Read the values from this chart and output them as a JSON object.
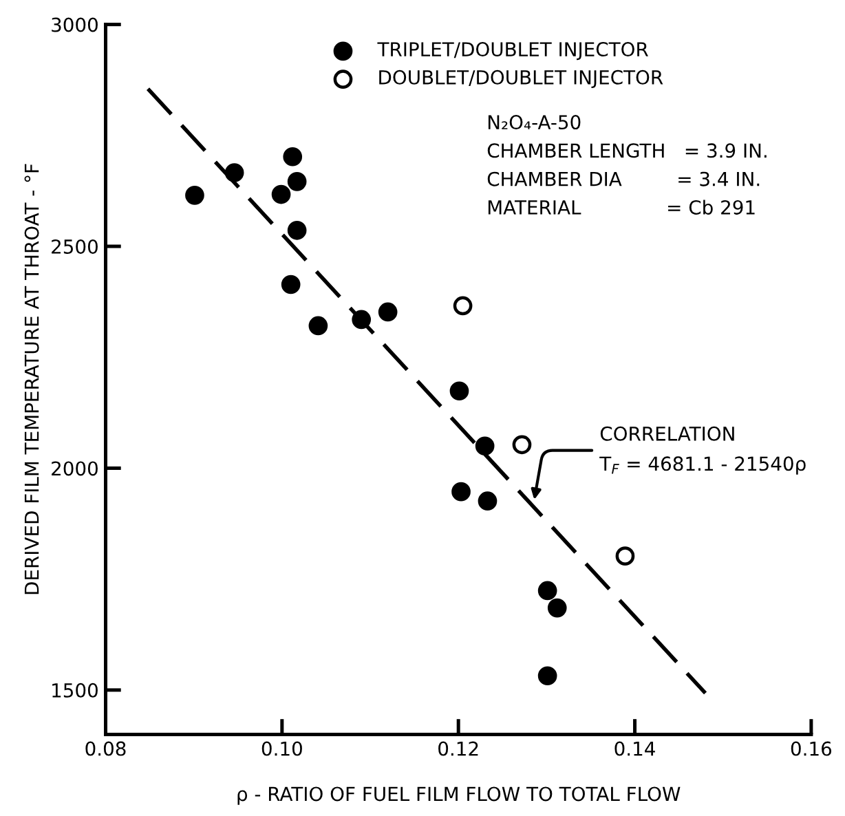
{
  "chart_data": {
    "type": "scatter",
    "xlabel": "ρ - RATIO OF FUEL FILM FLOW TO TOTAL FLOW",
    "ylabel": "DERIVED FILM TEMPERATURE AT THROAT - °F",
    "xlim": [
      0.08,
      0.16
    ],
    "ylim": [
      1400,
      3000
    ],
    "xticks": [
      {
        "value": 0.08,
        "label": "0.08"
      },
      {
        "value": 0.1,
        "label": "0.10"
      },
      {
        "value": 0.12,
        "label": "0.12"
      },
      {
        "value": 0.14,
        "label": "0.14"
      },
      {
        "value": 0.16,
        "label": "0.16"
      }
    ],
    "yticks": [
      1500,
      2000,
      2500,
      3000
    ],
    "grid": false,
    "legend": "top",
    "series": [
      {
        "name": "TRIPLET/DOUBLET INJECTOR",
        "color": "#000000",
        "marker": "circle",
        "x": [
          0.0901,
          0.0946,
          0.0999,
          0.1012,
          0.1017,
          0.1017,
          0.101,
          0.1041,
          0.109,
          0.112,
          0.1201,
          0.123,
          0.1203,
          0.1233,
          0.1301,
          0.1312,
          0.1301
        ],
        "values": [
          2615,
          2666,
          2617,
          2702,
          2646,
          2536,
          2414,
          2321,
          2335,
          2352,
          2174,
          2050,
          1947,
          1926,
          1724,
          1685,
          1532
        ]
      },
      {
        "name": "DOUBLET/DOUBLET INJECTOR",
        "color": "#ffffff",
        "marker": "circle",
        "x": [
          0.1205,
          0.1272,
          0.1389
        ],
        "values": [
          2366,
          2053,
          1802
        ]
      },
      {
        "type": "line",
        "color": "#000000",
        "marker": "none",
        "line_style": "dashed",
        "x": [
          0.0848,
          0.148
        ],
        "values": [
          2855,
          1493
        ]
      }
    ],
    "annotations": [
      "N₂O₄-A-50",
      "CHAMBER LENGTH   = 3.9 IN.",
      "CHAMBER DIA         = 3.4 IN.",
      "MATERIAL              = Cb 291",
      {
        "text": "CORRELATION\nT$_{F}$ = 4681.1 - 21540ρ",
        "x": 0.1286,
        "y": 1929
      }
    ]
  }
}
